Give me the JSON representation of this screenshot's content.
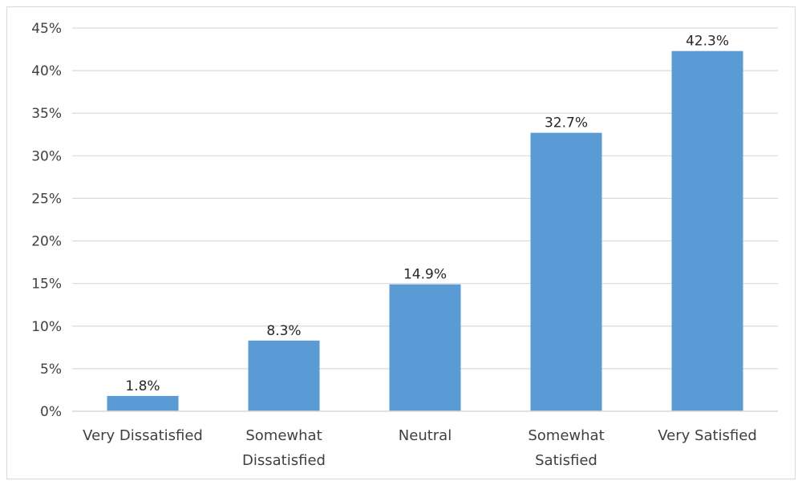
{
  "chart_data": {
    "type": "bar",
    "categories": [
      [
        "Very Dissatisfied"
      ],
      [
        "Somewhat",
        "Dissatisfied"
      ],
      [
        "Neutral"
      ],
      [
        "Somewhat",
        "Satisfied"
      ],
      [
        "Very Satisfied"
      ]
    ],
    "values": [
      1.8,
      8.3,
      14.9,
      32.7,
      42.3
    ],
    "data_labels": [
      "1.8%",
      "8.3%",
      "14.9%",
      "32.7%",
      "42.3%"
    ],
    "ylim": [
      0,
      45
    ],
    "yticks": [
      0,
      5,
      10,
      15,
      20,
      25,
      30,
      35,
      40,
      45
    ],
    "ytick_labels": [
      "0%",
      "5%",
      "10%",
      "15%",
      "20%",
      "25%",
      "30%",
      "35%",
      "40%",
      "45%"
    ],
    "title": "",
    "xlabel": "",
    "ylabel": "",
    "grid": true,
    "legend": "none",
    "bar_color": "#5b9bd5",
    "grid_color": "#d9d9d9"
  }
}
